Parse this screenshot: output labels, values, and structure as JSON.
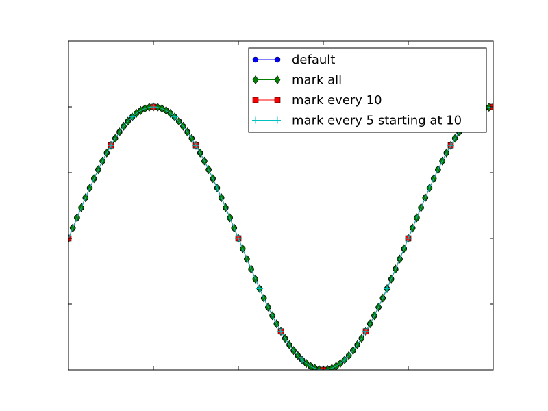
{
  "chart_data": {
    "type": "line",
    "title": "",
    "xlabel": "",
    "ylabel": "",
    "xlim": [
      0,
      1.25
    ],
    "ylim": [
      -1,
      1.5
    ],
    "grid": false,
    "tick_labels_shown": false,
    "legend_placement": "upper right",
    "x": [
      0.0,
      0.0125,
      0.025,
      0.0375,
      0.05,
      0.0625,
      0.075,
      0.0875,
      0.1,
      0.1125,
      0.125,
      0.1375,
      0.15,
      0.1625,
      0.175,
      0.1875,
      0.2,
      0.2125,
      0.225,
      0.2375,
      0.25,
      0.2625,
      0.275,
      0.2875,
      0.3,
      0.3125,
      0.325,
      0.3375,
      0.35,
      0.3625,
      0.375,
      0.3875,
      0.4,
      0.4125,
      0.425,
      0.4375,
      0.45,
      0.4625,
      0.475,
      0.4875,
      0.5,
      0.5125,
      0.525,
      0.5375,
      0.55,
      0.5625,
      0.575,
      0.5875,
      0.6,
      0.6125,
      0.625,
      0.6375,
      0.65,
      0.6625,
      0.675,
      0.6875,
      0.7,
      0.7125,
      0.725,
      0.7375,
      0.75,
      0.7625,
      0.775,
      0.7875,
      0.8,
      0.8125,
      0.825,
      0.8375,
      0.85,
      0.8625,
      0.875,
      0.8875,
      0.9,
      0.9125,
      0.925,
      0.9375,
      0.95,
      0.9625,
      0.975,
      0.9875,
      1.0,
      1.0125,
      1.025,
      1.0375,
      1.05,
      1.0625,
      1.075,
      1.0875,
      1.1,
      1.1125,
      1.125,
      1.1375,
      1.15,
      1.1625,
      1.175,
      1.1875,
      1.2,
      1.2125,
      1.225,
      1.2375,
      1.25
    ],
    "y": [
      0.0,
      0.0785,
      0.1564,
      0.2334,
      0.309,
      0.3827,
      0.454,
      0.5225,
      0.5878,
      0.6494,
      0.7071,
      0.7604,
      0.809,
      0.8526,
      0.891,
      0.9239,
      0.9511,
      0.9724,
      0.9877,
      0.9969,
      1.0,
      0.9969,
      0.9877,
      0.9724,
      0.9511,
      0.9239,
      0.891,
      0.8526,
      0.809,
      0.7604,
      0.7071,
      0.6494,
      0.5878,
      0.5225,
      0.454,
      0.3827,
      0.309,
      0.2334,
      0.1564,
      0.0785,
      0.0,
      -0.0785,
      -0.1564,
      -0.2334,
      -0.309,
      -0.3827,
      -0.454,
      -0.5225,
      -0.5878,
      -0.6494,
      -0.7071,
      -0.7604,
      -0.809,
      -0.8526,
      -0.891,
      -0.9239,
      -0.9511,
      -0.9724,
      -0.9877,
      -0.9969,
      -1.0,
      -0.9969,
      -0.9877,
      -0.9724,
      -0.9511,
      -0.9239,
      -0.891,
      -0.8526,
      -0.809,
      -0.7604,
      -0.7071,
      -0.6494,
      -0.5878,
      -0.5225,
      -0.454,
      -0.3827,
      -0.309,
      -0.2334,
      -0.1564,
      -0.0785,
      0.0,
      0.0785,
      0.1564,
      0.2334,
      0.309,
      0.3827,
      0.454,
      0.5225,
      0.5878,
      0.6494,
      0.7071,
      0.7604,
      0.809,
      0.8526,
      0.891,
      0.9239,
      0.9511,
      0.9724,
      0.9877,
      0.9969,
      1.0
    ],
    "series": [
      {
        "name": "default",
        "color": "#0000ff",
        "marker": "circle",
        "markevery": null
      },
      {
        "name": "mark all",
        "color": "#008000",
        "marker": "diamond",
        "markevery": 1
      },
      {
        "name": "mark every 10",
        "color": "#ff0000",
        "marker": "square",
        "markevery": 10
      },
      {
        "name": "mark every 5 starting at 10",
        "color": "#00bfbf",
        "marker": "plus",
        "markevery": [
          10,
          5
        ]
      }
    ]
  }
}
